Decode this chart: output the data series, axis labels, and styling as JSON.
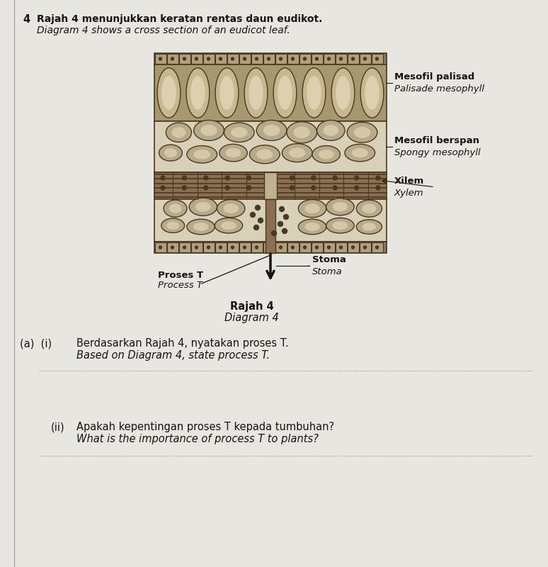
{
  "bg_color": "#e8e6e0",
  "title_line1": "Rajah 4 menunjukkan keratan rentas daun eudikot.",
  "title_line2": "Diagram 4 shows a cross section of an eudicot leaf.",
  "question_number": "4",
  "diagram_label_line1": "Rajah 4",
  "diagram_label_line2": "Diagram 4",
  "labels": {
    "mesofil_palisad": "Mesofil palisad",
    "palisade_mesophyll": "Palisade mesophyll",
    "mesofil_berspan": "Mesofil berspan",
    "spongy_mesophyll": "Spongy mesophyll",
    "xilem": "Xilem",
    "xylem": "Xylem",
    "stoma1": "Stoma",
    "stoma2": "Stoma",
    "proses_t": "Proses T",
    "process_t": "Process T"
  },
  "qa": {
    "a_i_label": "(a)  (i)",
    "a_i_malay": "Berdasarkan Rajah 4, nyatakan proses T.",
    "a_i_english": "Based on Diagram 4, state process T.",
    "a_ii_label": "(ii)",
    "a_ii_malay": "Apakah kepentingan proses T kepada tumbuhan?",
    "a_ii_english": "What is the importance of process T to plants?"
  }
}
